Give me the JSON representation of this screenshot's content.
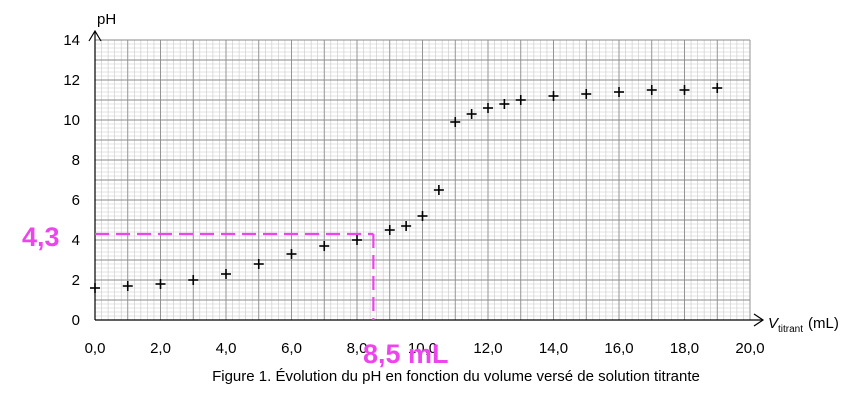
{
  "chart_data": {
    "type": "scatter",
    "title": "",
    "caption": "Figure 1. Évolution du pH en fonction du volume versé de solution titrante",
    "ylabel": "pH",
    "xlabel_main": "V",
    "xlabel_sub": "titrant",
    "xlabel_unit": "(mL)",
    "xlim": [
      0,
      20
    ],
    "ylim": [
      0,
      14
    ],
    "grid": true,
    "x_ticks": [
      "0,0",
      "2,0",
      "4,0",
      "6,0",
      "8,0",
      "10,0",
      "12,0",
      "14,0",
      "16,0",
      "18,0",
      "20,0"
    ],
    "y_ticks": [
      "0",
      "2",
      "4",
      "6",
      "8",
      "10",
      "12",
      "14"
    ],
    "marker": "+",
    "x": [
      0,
      1,
      2,
      3,
      4,
      5,
      6,
      7,
      8,
      9,
      9.5,
      10,
      10.5,
      11,
      11.5,
      12,
      12.5,
      13,
      14,
      15,
      16,
      17,
      18,
      19
    ],
    "y": [
      1.6,
      1.7,
      1.8,
      2.0,
      2.3,
      2.8,
      3.3,
      3.7,
      4.0,
      4.5,
      4.7,
      5.2,
      6.5,
      9.9,
      10.3,
      10.6,
      10.8,
      11.0,
      11.2,
      11.3,
      11.4,
      11.5,
      11.5,
      11.6
    ],
    "annotations": {
      "guide_color": "#ee44ee",
      "guide_x": 8.5,
      "guide_y": 4.3,
      "y_label": "4,3",
      "x_label": "8,5 mL"
    }
  }
}
